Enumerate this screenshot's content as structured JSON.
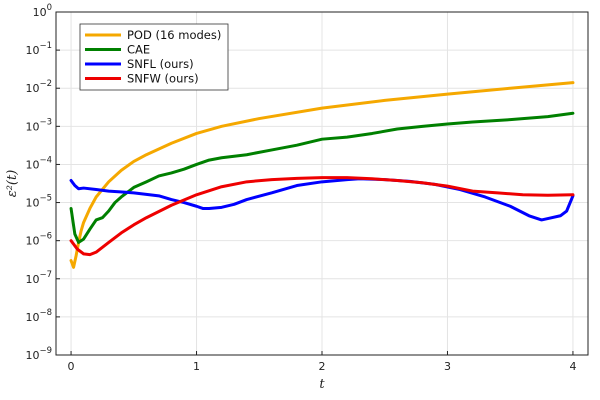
{
  "chart_data": {
    "type": "line",
    "title": "",
    "xlabel": "t",
    "ylabel": "ε²(t)",
    "xscale": "linear",
    "yscale": "log",
    "xlim": [
      -0.12,
      4.12
    ],
    "ylim": [
      1e-09,
      1
    ],
    "xticks": [
      0,
      1,
      2,
      3,
      4
    ],
    "xtick_labels": [
      "0",
      "1",
      "2",
      "3",
      "4"
    ],
    "yticks": [
      1e-09,
      1e-08,
      1e-07,
      1e-06,
      1e-05,
      0.0001,
      0.001,
      0.01,
      0.1,
      1
    ],
    "ytick_labels": [
      {
        "base": "10",
        "exp": "−9"
      },
      {
        "base": "10",
        "exp": "−8"
      },
      {
        "base": "10",
        "exp": "−7"
      },
      {
        "base": "10",
        "exp": "−6"
      },
      {
        "base": "10",
        "exp": "−5"
      },
      {
        "base": "10",
        "exp": "−4"
      },
      {
        "base": "10",
        "exp": "−3"
      },
      {
        "base": "10",
        "exp": "−2"
      },
      {
        "base": "10",
        "exp": "−1"
      },
      {
        "base": "10",
        "exp": "0"
      }
    ],
    "grid": true,
    "legend_position": "top-left",
    "series": [
      {
        "name": "POD (16 modes)",
        "color": "#f5a800",
        "x": [
          0,
          0.02,
          0.04,
          0.06,
          0.08,
          0.1,
          0.15,
          0.2,
          0.3,
          0.4,
          0.5,
          0.6,
          0.8,
          1.0,
          1.2,
          1.5,
          2.0,
          2.5,
          3.0,
          3.5,
          4.0
        ],
        "y": [
          3e-07,
          2e-07,
          4e-07,
          9e-07,
          1.8e-06,
          3e-06,
          7e-06,
          1.4e-05,
          3.5e-05,
          7e-05,
          0.00012,
          0.00018,
          0.00036,
          0.00065,
          0.001,
          0.0016,
          0.003,
          0.0048,
          0.007,
          0.01,
          0.014
        ]
      },
      {
        "name": "CAE",
        "color": "#008000",
        "x": [
          0,
          0.03,
          0.06,
          0.1,
          0.15,
          0.2,
          0.25,
          0.3,
          0.35,
          0.4,
          0.5,
          0.6,
          0.7,
          0.8,
          0.9,
          1.0,
          1.1,
          1.2,
          1.4,
          1.6,
          1.8,
          2.0,
          2.2,
          2.4,
          2.6,
          2.8,
          3.0,
          3.2,
          3.5,
          3.8,
          4.0
        ],
        "y": [
          7e-06,
          1.5e-06,
          9e-07,
          1.1e-06,
          2e-06,
          3.5e-06,
          4e-06,
          6e-06,
          1e-05,
          1.4e-05,
          2.5e-05,
          3.5e-05,
          5e-05,
          6e-05,
          7.5e-05,
          0.0001,
          0.00013,
          0.00015,
          0.00018,
          0.00024,
          0.00032,
          0.00046,
          0.00052,
          0.00065,
          0.00085,
          0.001,
          0.00115,
          0.0013,
          0.0015,
          0.0018,
          0.0022
        ]
      },
      {
        "name": "SNFL (ours)",
        "color": "#0000ff",
        "x": [
          0,
          0.03,
          0.06,
          0.1,
          0.2,
          0.3,
          0.5,
          0.7,
          0.8,
          0.9,
          1.0,
          1.05,
          1.1,
          1.2,
          1.3,
          1.4,
          1.6,
          1.8,
          2.0,
          2.2,
          2.3,
          2.5,
          2.7,
          2.9,
          3.1,
          3.3,
          3.5,
          3.65,
          3.75,
          3.8,
          3.9,
          3.95,
          4.0
        ],
        "y": [
          3.8e-05,
          2.8e-05,
          2.3e-05,
          2.4e-05,
          2.2e-05,
          2e-05,
          1.8e-05,
          1.5e-05,
          1.2e-05,
          1e-05,
          8e-06,
          7e-06,
          7e-06,
          7.5e-06,
          9e-06,
          1.2e-05,
          1.8e-05,
          2.8e-05,
          3.5e-05,
          4e-05,
          4.2e-05,
          4e-05,
          3.6e-05,
          3e-05,
          2.2e-05,
          1.4e-05,
          8e-06,
          4.5e-06,
          3.5e-06,
          3.8e-06,
          4.5e-06,
          6e-06,
          1.5e-05
        ]
      },
      {
        "name": "SNFW (ours)",
        "color": "#ee0000",
        "x": [
          0,
          0.05,
          0.1,
          0.15,
          0.2,
          0.3,
          0.4,
          0.5,
          0.6,
          0.8,
          1.0,
          1.2,
          1.4,
          1.6,
          1.8,
          2.0,
          2.2,
          2.4,
          2.6,
          2.8,
          3.0,
          3.2,
          3.4,
          3.6,
          3.8,
          4.0
        ],
        "y": [
          1e-06,
          6e-07,
          4.5e-07,
          4.3e-07,
          5e-07,
          9e-07,
          1.6e-06,
          2.6e-06,
          4e-06,
          8.5e-06,
          1.6e-05,
          2.6e-05,
          3.5e-05,
          4e-05,
          4.3e-05,
          4.5e-05,
          4.5e-05,
          4.2e-05,
          3.8e-05,
          3.3e-05,
          2.7e-05,
          2e-05,
          1.8e-05,
          1.6e-05,
          1.55e-05,
          1.6e-05
        ]
      }
    ]
  }
}
